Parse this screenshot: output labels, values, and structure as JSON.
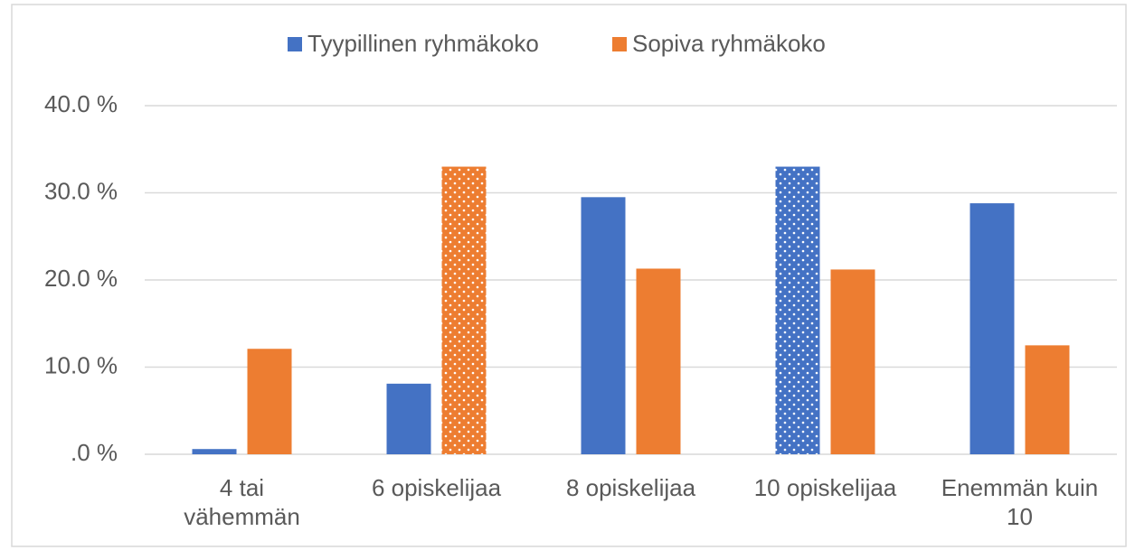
{
  "chart_data": {
    "type": "bar",
    "categories": [
      "4 tai\nvähemmän",
      "6 opiskelijaa",
      "8 opiskelijaa",
      "10 opiskelijaa",
      "Enemmän kuin\n10"
    ],
    "series": [
      {
        "name": "Tyypillinen ryhmäkoko",
        "color": "#4472c4",
        "values": [
          0.6,
          8.1,
          29.5,
          33.0,
          28.8
        ]
      },
      {
        "name": "Sopiva ryhmäkoko",
        "color": "#ed7d31",
        "values": [
          12.1,
          33.0,
          21.3,
          21.2,
          12.5
        ]
      }
    ],
    "highlight": [
      {
        "series": 1,
        "index": 1
      },
      {
        "series": 0,
        "index": 3
      }
    ],
    "ylim": [
      0,
      40
    ],
    "yticks": [
      {
        "value": 0,
        "label": ".0 %"
      },
      {
        "value": 10,
        "label": "10.0 %"
      },
      {
        "value": 20,
        "label": "20.0 %"
      },
      {
        "value": 30,
        "label": "30.0 %"
      },
      {
        "value": 40,
        "label": "40.0 %"
      }
    ],
    "grid": true,
    "legend": "top"
  }
}
